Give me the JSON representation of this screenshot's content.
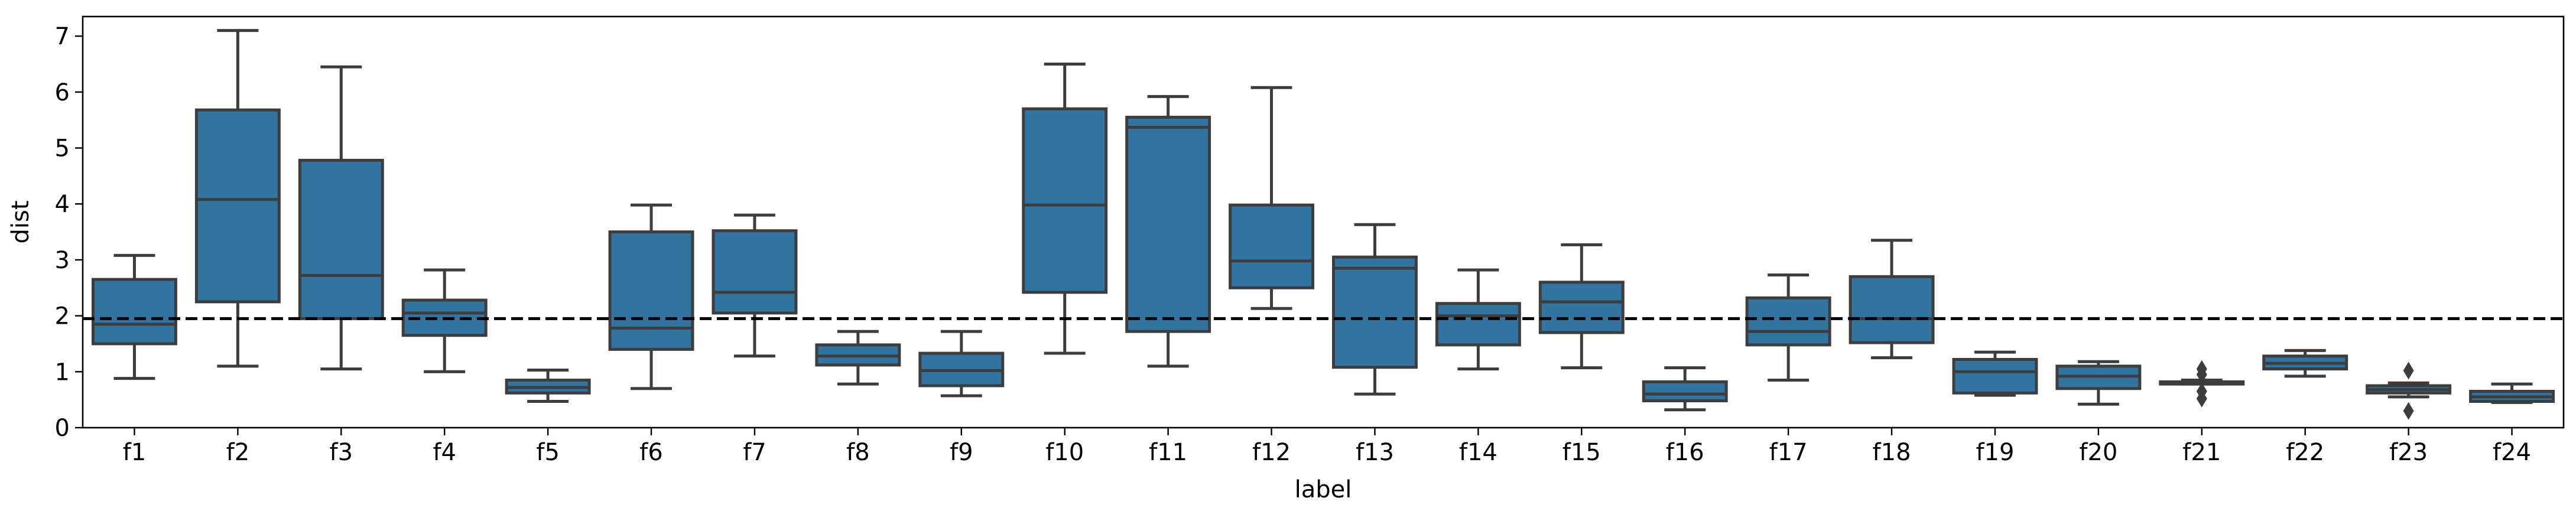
{
  "chart_data": {
    "type": "box",
    "title": "",
    "xlabel": "label",
    "ylabel": "dist",
    "ylim": [
      0,
      7.35
    ],
    "yticks": [
      0,
      1,
      2,
      3,
      4,
      5,
      6,
      7
    ],
    "grid": false,
    "box_color": "#3274a1",
    "edge_color": "#3d3d3d",
    "reference_line": {
      "y": 1.95,
      "style": "dashed",
      "color": "#000000"
    },
    "categories": [
      "f1",
      "f2",
      "f3",
      "f4",
      "f5",
      "f6",
      "f7",
      "f8",
      "f9",
      "f10",
      "f11",
      "f12",
      "f13",
      "f14",
      "f15",
      "f16",
      "f17",
      "f18",
      "f19",
      "f20",
      "f21",
      "f22",
      "f23",
      "f24"
    ],
    "boxes": [
      {
        "label": "f1",
        "whislo": 0.88,
        "q1": 1.5,
        "med": 1.85,
        "q3": 2.65,
        "whishi": 3.08,
        "fliers": []
      },
      {
        "label": "f2",
        "whislo": 1.1,
        "q1": 2.25,
        "med": 4.08,
        "q3": 5.68,
        "whishi": 7.1,
        "fliers": []
      },
      {
        "label": "f3",
        "whislo": 1.05,
        "q1": 1.95,
        "med": 2.72,
        "q3": 4.78,
        "whishi": 6.45,
        "fliers": []
      },
      {
        "label": "f4",
        "whislo": 1.0,
        "q1": 1.65,
        "med": 2.05,
        "q3": 2.28,
        "whishi": 2.82,
        "fliers": []
      },
      {
        "label": "f5",
        "whislo": 0.47,
        "q1": 0.62,
        "med": 0.72,
        "q3": 0.85,
        "whishi": 1.03,
        "fliers": []
      },
      {
        "label": "f6",
        "whislo": 0.7,
        "q1": 1.4,
        "med": 1.78,
        "q3": 3.5,
        "whishi": 3.98,
        "fliers": []
      },
      {
        "label": "f7",
        "whislo": 1.28,
        "q1": 2.05,
        "med": 2.42,
        "q3": 3.52,
        "whishi": 3.8,
        "fliers": []
      },
      {
        "label": "f8",
        "whislo": 0.78,
        "q1": 1.12,
        "med": 1.28,
        "q3": 1.48,
        "whishi": 1.72,
        "fliers": []
      },
      {
        "label": "f9",
        "whislo": 0.57,
        "q1": 0.75,
        "med": 1.02,
        "q3": 1.33,
        "whishi": 1.72,
        "fliers": []
      },
      {
        "label": "f10",
        "whislo": 1.33,
        "q1": 2.42,
        "med": 3.98,
        "q3": 5.7,
        "whishi": 6.5,
        "fliers": []
      },
      {
        "label": "f11",
        "whislo": 1.1,
        "q1": 1.72,
        "med": 5.37,
        "q3": 5.55,
        "whishi": 5.92,
        "fliers": []
      },
      {
        "label": "f12",
        "whislo": 2.13,
        "q1": 2.5,
        "med": 2.98,
        "q3": 3.98,
        "whishi": 6.08,
        "fliers": []
      },
      {
        "label": "f13",
        "whislo": 0.6,
        "q1": 1.08,
        "med": 2.85,
        "q3": 3.05,
        "whishi": 3.63,
        "fliers": []
      },
      {
        "label": "f14",
        "whislo": 1.05,
        "q1": 1.48,
        "med": 2.0,
        "q3": 2.22,
        "whishi": 2.82,
        "fliers": []
      },
      {
        "label": "f15",
        "whislo": 1.07,
        "q1": 1.7,
        "med": 2.25,
        "q3": 2.6,
        "whishi": 3.27,
        "fliers": []
      },
      {
        "label": "f16",
        "whislo": 0.32,
        "q1": 0.48,
        "med": 0.6,
        "q3": 0.82,
        "whishi": 1.07,
        "fliers": []
      },
      {
        "label": "f17",
        "whislo": 0.85,
        "q1": 1.48,
        "med": 1.72,
        "q3": 2.32,
        "whishi": 2.73,
        "fliers": []
      },
      {
        "label": "f18",
        "whislo": 1.25,
        "q1": 1.52,
        "med": 1.95,
        "q3": 2.7,
        "whishi": 3.35,
        "fliers": []
      },
      {
        "label": "f19",
        "whislo": 0.58,
        "q1": 0.62,
        "med": 1.0,
        "q3": 1.22,
        "whishi": 1.35,
        "fliers": []
      },
      {
        "label": "f20",
        "whislo": 0.42,
        "q1": 0.7,
        "med": 0.92,
        "q3": 1.1,
        "whishi": 1.18,
        "fliers": []
      },
      {
        "label": "f21",
        "whislo": 0.78,
        "q1": 0.78,
        "med": 0.8,
        "q3": 0.82,
        "whishi": 0.85,
        "fliers": [
          0.52,
          0.65,
          0.95,
          1.05
        ]
      },
      {
        "label": "f22",
        "whislo": 0.92,
        "q1": 1.05,
        "med": 1.15,
        "q3": 1.28,
        "whishi": 1.38,
        "fliers": []
      },
      {
        "label": "f23",
        "whislo": 0.55,
        "q1": 0.62,
        "med": 0.68,
        "q3": 0.75,
        "whishi": 0.8,
        "fliers": [
          0.3,
          1.02
        ]
      },
      {
        "label": "f24",
        "whislo": 0.45,
        "q1": 0.47,
        "med": 0.55,
        "q3": 0.65,
        "whishi": 0.78,
        "fliers": []
      }
    ]
  }
}
